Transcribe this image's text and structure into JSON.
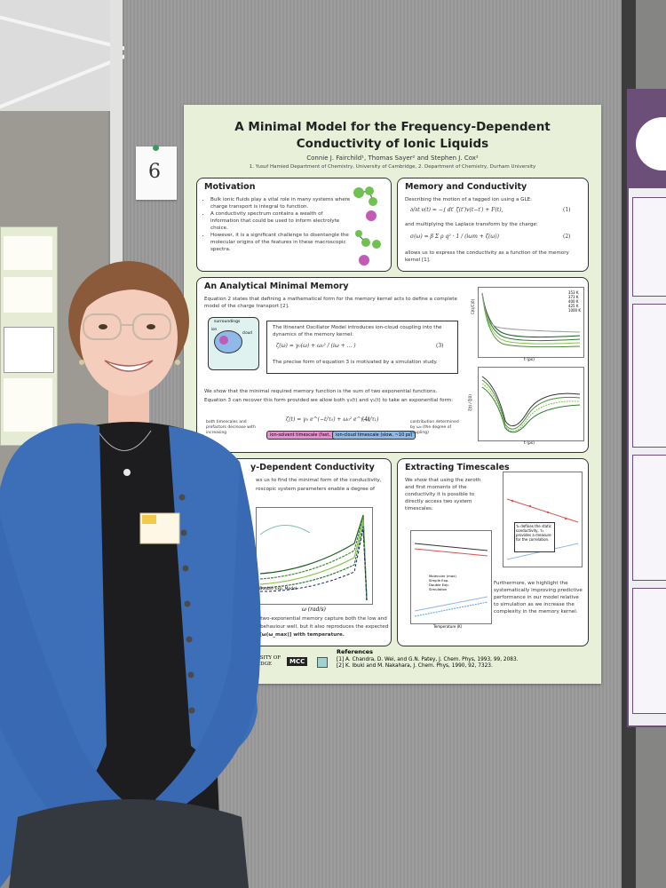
{
  "poster": {
    "title": "A Minimal Model for the Frequency-Dependent Conductivity of Ionic Liquids",
    "authors": "Connie J. Fairchild¹, Thomas Sayer² and Stephen J. Cox²",
    "affiliations": "1. Yusuf Hamied Department of Chemistry, University of Cambridge, 2. Department of Chemistry, Durham University",
    "motivation": {
      "title": "Motivation",
      "bullets": [
        "Bulk ionic fluids play a vital role in many systems where charge transport is integral to function.",
        "A conductivity spectrum contains a wealth of information that could be used to inform electrolyte choice.",
        "However, it is a significant challenge to disentangle the molecular origins of the features in these macroscopic spectra."
      ]
    },
    "memory": {
      "title": "Memory and Conductivity",
      "text1": "Describing the motion of a tagged ion using a GLE:",
      "text2": "and multiplying the Laplace transform by the charge:",
      "text3": "allows us to express the conductivity as a function of the memory kernel [1].",
      "eq1_num": "(1)",
      "eq2_num": "(2)"
    },
    "analytical": {
      "title": "An Analytical Minimal Memory",
      "text1": "Equation 2 states that defining a mathematical form for the memory kernel acts to define a complete model of the charge transport [2].",
      "ito_text": "The Itinerant Oscillator Model introduces ion-cloud coupling into the dynamics of the memory kernel:",
      "eq3_num": "(3)",
      "text_sim": "The precise form of equation 3 is motivated by a simulation study.",
      "text2": "We show that the minimal required memory function is the sum of two exponential functions.",
      "text3": "Equation 3 can recover this form provided we allow both γ₀(t) and γ₁(t) to take an exponential form:",
      "eq4_num": "(4)",
      "label_both": "both timescales and prefactors decrease with increasing",
      "tag_fast": "ion-solvent timescale (fast, ~0.1 ps)",
      "tag_slow": "ion-cloud timescale (slow, ~10 ps)",
      "label_contrib": "contribution determined by ω₀ (the degree of coupling)",
      "surroundings": "surroundings",
      "cloud": "cloud",
      "ion": "ion",
      "legend_temps": [
        "353 K",
        "373 K",
        "400 K",
        "425 K",
        "1000 K"
      ],
      "xlabel_top": "t (ps)",
      "xlabel_bottom": "t (ps)",
      "ylabel_top": "C(t)/C(0)",
      "ylabel_bottom": "ζ(t) / ζ(0)"
    },
    "freqdep": {
      "title": "y-Dependent Conductivity",
      "text1": "ws us to find the minimal form of the conductivity,",
      "text2": "roscopic system parameters enable a degree of",
      "legend": "Double Exp. Model",
      "xlabel": "ω (rad/s)",
      "text3": "a two-exponential memory capture both the low and",
      "text4": "y behaviour well, but it also reproduces the expected",
      "text5": "σ[ω(ω_max)] with temperature."
    },
    "timescales": {
      "title": "Extracting Timescales",
      "text1": "We show that using the zeroth and first moments of the conductivity it is possible to directly access two system timescales.",
      "callout": "τ₀ defines the static conductivity, τ₁ provides a measure for the correlation.",
      "xlabel": "Temperature (K)",
      "legend": [
        "Molecular (max)",
        "Simple Exp.",
        "Double Exp.",
        "Simulation"
      ],
      "text2": "Furthermore, we highlight the systematically improving predictive performance in our model relative to simulation as we increase the complexity in the memory kernel."
    },
    "references": {
      "title": "References",
      "ref1": "[1] A. Chandra, D. Wei, and G.N. Patey, J. Chem. Phys, 1993, 99, 2083.",
      "ref2": "[2] K. Ibuki and M. Nakahara, J. Chem. Phys, 1990, 92, 7323."
    },
    "logo_uni": "UNIVERSITY OF CAMBRIDGE",
    "logo_mcc": "MCC"
  },
  "note": {
    "number": "6"
  },
  "right_poster": {
    "title_fragment": "Du"
  },
  "colors": {
    "poster_bg": "#e9f0da",
    "cardigan": "#3c6fb8",
    "tag_fast": "#e98fd0",
    "tag_slow": "#8fb9e9",
    "green_atom": "#6fc152",
    "pink_atom": "#c25bb5"
  }
}
